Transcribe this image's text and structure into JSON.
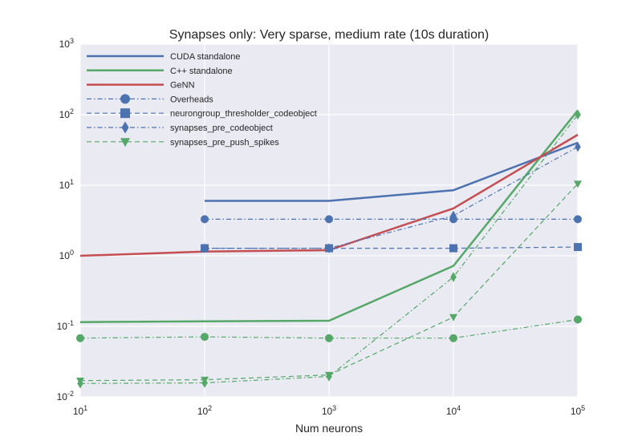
{
  "chart_data": {
    "type": "line",
    "title": "Synapses only: Very sparse, medium rate (10s duration)",
    "xlabel": "Num neurons",
    "ylabel": "",
    "xscale": "log",
    "yscale": "log",
    "xlim": [
      10,
      100000
    ],
    "ylim": [
      0.01,
      1000
    ],
    "grid": true,
    "legend_position": "top-left",
    "x_ticks": [
      {
        "base": "10",
        "exp": "1"
      },
      {
        "base": "10",
        "exp": "2"
      },
      {
        "base": "10",
        "exp": "3"
      },
      {
        "base": "10",
        "exp": "4"
      },
      {
        "base": "10",
        "exp": "5"
      }
    ],
    "y_ticks": [
      {
        "base": "10",
        "exp": "-2"
      },
      {
        "base": "10",
        "exp": "-1"
      },
      {
        "base": "10",
        "exp": "0"
      },
      {
        "base": "10",
        "exp": "1"
      },
      {
        "base": "10",
        "exp": "2"
      },
      {
        "base": "10",
        "exp": "3"
      }
    ],
    "legend": [
      {
        "name": "CUDA standalone",
        "color": "#4c72b0",
        "dash": "solid",
        "marker": "none",
        "width": 2.5
      },
      {
        "name": "C++ standalone",
        "color": "#55a868",
        "dash": "solid",
        "marker": "none",
        "width": 2.5
      },
      {
        "name": "GeNN",
        "color": "#c44e52",
        "dash": "solid",
        "marker": "none",
        "width": 2.5
      },
      {
        "name": "Overheads",
        "color": "#4c72b0",
        "dash": "dashdot",
        "marker": "circle",
        "width": 1.2
      },
      {
        "name": "neurongroup_thresholder_codeobject",
        "color": "#4c72b0",
        "dash": "dashed",
        "marker": "square",
        "width": 1.2
      },
      {
        "name": "synapses_pre_codeobject",
        "color": "#4c72b0",
        "dash": "dashdot",
        "marker": "diamond",
        "width": 1.2
      },
      {
        "name": "synapses_pre_push_spikes",
        "color": "#55a868",
        "dash": "dashed",
        "marker": "triangle",
        "width": 1.2
      }
    ],
    "series": [
      {
        "color": "#4c72b0",
        "dash": "solid",
        "marker": "none",
        "width": 2.5,
        "x": [
          100,
          1000,
          10000,
          100000
        ],
        "y": [
          6.0,
          6.0,
          8.5,
          40
        ]
      },
      {
        "color": "#55a868",
        "dash": "solid",
        "marker": "none",
        "width": 2.5,
        "x": [
          10,
          100,
          1000,
          10000,
          100000
        ],
        "y": [
          0.115,
          0.118,
          0.12,
          0.72,
          115
        ]
      },
      {
        "color": "#c44e52",
        "dash": "solid",
        "marker": "none",
        "width": 2.5,
        "x": [
          10,
          100,
          1000,
          10000,
          100000
        ],
        "y": [
          1.0,
          1.15,
          1.2,
          4.7,
          52
        ]
      },
      {
        "color": "#4c72b0",
        "dash": "dashdot",
        "marker": "circle",
        "width": 1.2,
        "x": [
          100,
          1000,
          10000,
          100000
        ],
        "y": [
          3.3,
          3.3,
          3.3,
          3.3
        ]
      },
      {
        "color": "#4c72b0",
        "dash": "dashed",
        "marker": "square",
        "width": 1.2,
        "x": [
          100,
          1000,
          10000,
          100000
        ],
        "y": [
          1.28,
          1.28,
          1.28,
          1.33
        ]
      },
      {
        "color": "#4c72b0",
        "dash": "dashdot",
        "marker": "diamond",
        "width": 1.2,
        "x": [
          100,
          1000,
          10000,
          100000
        ],
        "y": [
          1.28,
          1.28,
          3.7,
          35
        ]
      },
      {
        "color": "#55a868",
        "dash": "dashdot",
        "marker": "circle",
        "width": 1.2,
        "x": [
          10,
          100,
          1000,
          10000,
          100000
        ],
        "y": [
          0.068,
          0.071,
          0.068,
          0.068,
          0.125
        ]
      },
      {
        "color": "#55a868",
        "dash": "dashed",
        "marker": "triangle",
        "width": 1.2,
        "x": [
          10,
          100,
          1000,
          10000,
          100000
        ],
        "y": [
          0.017,
          0.0175,
          0.0205,
          0.135,
          10.5
        ]
      },
      {
        "color": "#55a868",
        "dash": "dashdot",
        "marker": "diamond",
        "width": 1.2,
        "x": [
          10,
          100,
          1000,
          10000,
          100000
        ],
        "y": [
          0.0155,
          0.0158,
          0.0195,
          0.5,
          100
        ]
      }
    ]
  }
}
